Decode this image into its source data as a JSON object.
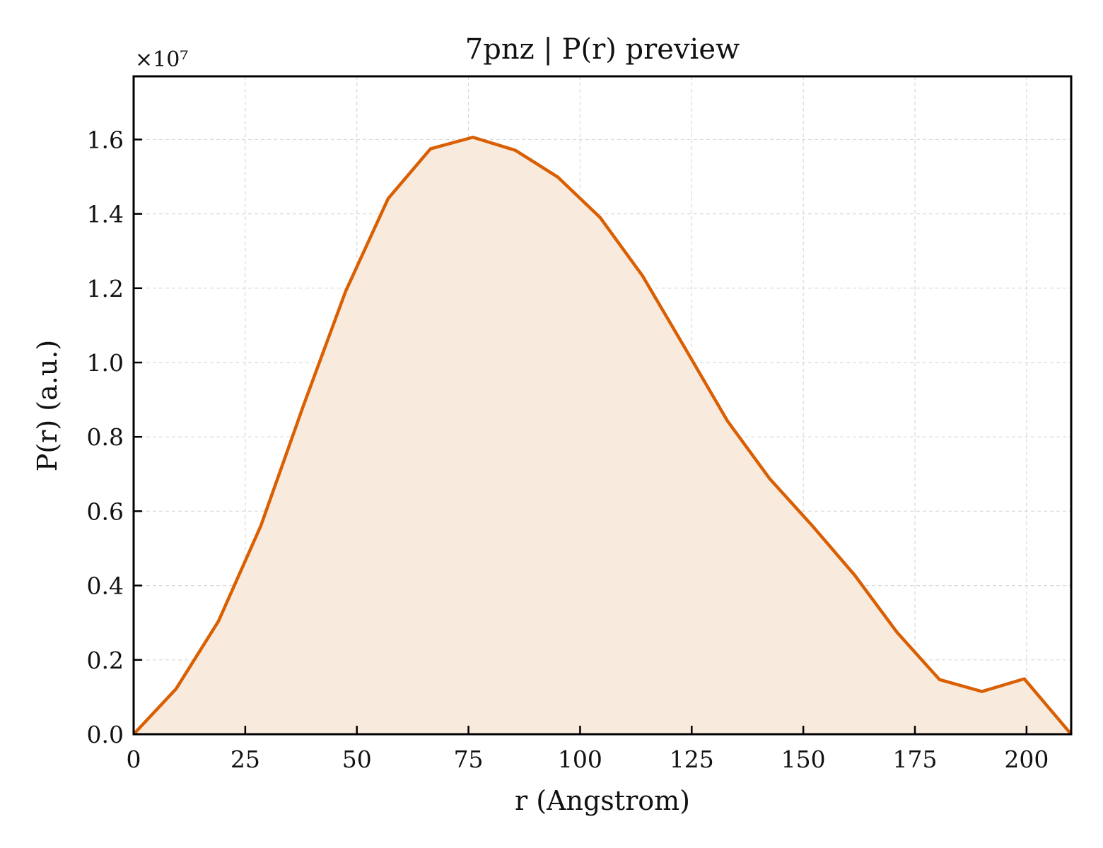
{
  "chart_data": {
    "type": "area",
    "title": "7pnz | P(r) preview",
    "xlabel": "r (Angstrom)",
    "ylabel": "P(r) (a.u.)",
    "y_multiplier": "×10⁷",
    "xlim": [
      0,
      210
    ],
    "ylim": [
      0,
      1.77
    ],
    "x_ticks": [
      0,
      25,
      50,
      75,
      100,
      125,
      150,
      175,
      200
    ],
    "x_tick_labels": [
      "0",
      "25",
      "50",
      "75",
      "100",
      "125",
      "150",
      "175",
      "200"
    ],
    "y_ticks": [
      0.0,
      0.2,
      0.4,
      0.6,
      0.8,
      1.0,
      1.2,
      1.4,
      1.6
    ],
    "y_tick_labels": [
      "0.0",
      "0.2",
      "0.4",
      "0.6",
      "0.8",
      "1.0",
      "1.2",
      "1.4",
      "1.6"
    ],
    "grid": true,
    "colors": {
      "line": "#d95f02",
      "fill": "#f9eade",
      "grid": "#d9d9d9",
      "axes": "#000000"
    },
    "series": [
      {
        "x": [
          0,
          9.5,
          19,
          28.5,
          38,
          47.5,
          57,
          66.5,
          76,
          85.5,
          95,
          104.5,
          114,
          123.5,
          133,
          142.5,
          152,
          161.5,
          171,
          180.5,
          190,
          199.5,
          210
        ],
        "y": [
          0.0,
          0.122,
          0.304,
          0.561,
          0.883,
          1.192,
          1.441,
          1.575,
          1.606,
          1.571,
          1.499,
          1.39,
          1.233,
          1.039,
          0.843,
          0.687,
          0.561,
          0.428,
          0.274,
          0.147,
          0.115,
          0.149,
          0.0
        ]
      }
    ]
  }
}
